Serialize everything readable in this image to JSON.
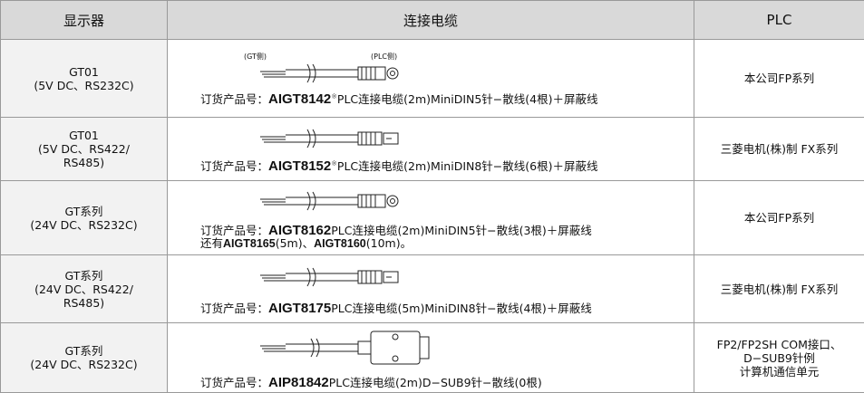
{
  "header": {
    "display": "显示器",
    "cable": "连接电缆",
    "plc": "PLC"
  },
  "rows": [
    {
      "display": [
        "GT01",
        "(5V DC、RS232C)"
      ],
      "cable": {
        "side_labels": [
          "(GT侧)",
          "(PLC侧)"
        ],
        "order_prefix": "订货产品号：",
        "model": "AIGT8142",
        "note": "※",
        "description": "PLC连接电缆(2m)MiniDIN5针−散线(4根)＋屏蔽线"
      },
      "plc": [
        "本公司FP系列"
      ]
    },
    {
      "display": [
        "GT01",
        "(5V DC、RS422/",
        "RS485)"
      ],
      "cable": {
        "order_prefix": "订货产品号：",
        "model": "AIGT8152",
        "note": "※",
        "description": "PLC连接电缆(2m)MiniDIN8针−散线(6根)＋屏蔽线"
      },
      "plc": [
        "三菱电机(株)制 FX系列"
      ]
    },
    {
      "display": [
        "GT系列",
        "(24V DC、RS232C)"
      ],
      "cable": {
        "order_prefix": "订货产品号：",
        "model": "AIGT8162",
        "description": "PLC连接电缆(2m)MiniDIN5针−散线(3根)＋屏蔽线",
        "extra": [
          "还有",
          "AIGT8165",
          "(5m)、",
          "AIGT8160",
          "(10m)。"
        ]
      },
      "plc": [
        "本公司FP系列"
      ]
    },
    {
      "display": [
        "GT系列",
        "(24V DC、RS422/",
        "RS485)"
      ],
      "cable": {
        "order_prefix": "订货产品号：",
        "model": "AIGT8175",
        "description": "PLC连接电缆(5m)MiniDIN8针−散线(4根)＋屏蔽线"
      },
      "plc": [
        "三菱电机(株)制 FX系列"
      ]
    },
    {
      "display": [
        "GT系列",
        "(24V DC、RS232C)"
      ],
      "cable": {
        "order_prefix": "订货产品号：",
        "model": "AIP81842",
        "description": "PLC连接电缆(2m)D−SUB9针−散线(0根)"
      },
      "plc": [
        "FP2/FP2SH COM接口、",
        "D−SUB9针例",
        "计算机通信单元"
      ]
    }
  ]
}
